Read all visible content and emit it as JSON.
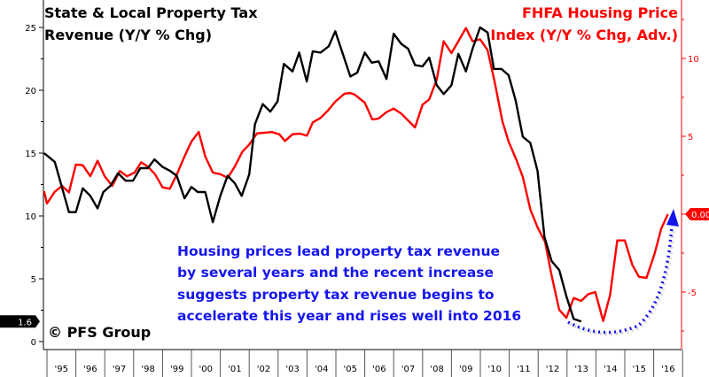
{
  "chart_data": {
    "type": "line",
    "title": "",
    "left_axis": {
      "label_lines": [
        "State & Local Property Tax",
        "Revenue (Y/Y % Chg)"
      ],
      "ylim": [
        0,
        27
      ],
      "ticks": [
        0,
        5,
        10,
        15,
        20,
        25
      ],
      "color": "#000000"
    },
    "right_axis": {
      "label_lines": [
        "FHFA Housing Price",
        "Index (Y/Y % Chg, Adv.)"
      ],
      "ylim": [
        -8.2,
        13.8
      ],
      "ticks": [
        -5,
        5,
        10
      ],
      "color": "#ff0000"
    },
    "x_axis": {
      "xlim": [
        1994.85,
        2017
      ],
      "tick_labels": [
        "'95",
        "'96",
        "'97",
        "'98",
        "'99",
        "'00",
        "'01",
        "'02",
        "'03",
        "'04",
        "'05",
        "'06",
        "'07",
        "'08",
        "'09",
        "'10",
        "'11",
        "'12",
        "'13",
        "'14",
        "'15",
        "'16"
      ]
    },
    "series": [
      {
        "name": "State & Local Property Tax Revenue (Y/Y % Chg)",
        "axis": "left",
        "color": "#000000",
        "last_value_label": "1.6",
        "points": [
          [
            1994.9,
            15.0
          ],
          [
            1995.27,
            14.3
          ],
          [
            1995.76,
            10.3
          ],
          [
            1996.0,
            10.3
          ],
          [
            1996.24,
            12.2
          ],
          [
            1996.5,
            11.6
          ],
          [
            1996.75,
            10.6
          ],
          [
            1996.95,
            11.9
          ],
          [
            1997.2,
            12.4
          ],
          [
            1997.46,
            13.4
          ],
          [
            1997.72,
            12.8
          ],
          [
            1997.98,
            12.8
          ],
          [
            1998.23,
            13.8
          ],
          [
            1998.49,
            13.8
          ],
          [
            1998.72,
            14.5
          ],
          [
            1999.0,
            13.9
          ],
          [
            1999.25,
            13.6
          ],
          [
            1999.49,
            13.2
          ],
          [
            1999.76,
            11.4
          ],
          [
            2000.0,
            12.3
          ],
          [
            2000.22,
            11.9
          ],
          [
            2000.48,
            11.9
          ],
          [
            2000.74,
            9.5
          ],
          [
            2001.0,
            11.6
          ],
          [
            2001.25,
            13.2
          ],
          [
            2001.5,
            12.6
          ],
          [
            2001.74,
            11.6
          ],
          [
            2002.0,
            13.3
          ],
          [
            2002.2,
            17.3
          ],
          [
            2002.47,
            18.9
          ],
          [
            2002.73,
            18.3
          ],
          [
            2002.98,
            19.1
          ],
          [
            2003.2,
            22.1
          ],
          [
            2003.5,
            21.5
          ],
          [
            2003.73,
            23.0
          ],
          [
            2003.99,
            20.7
          ],
          [
            2004.2,
            23.1
          ],
          [
            2004.47,
            23.0
          ],
          [
            2004.75,
            23.5
          ],
          [
            2004.98,
            24.7
          ],
          [
            2005.5,
            21.1
          ],
          [
            2005.74,
            21.4
          ],
          [
            2006.0,
            23.0
          ],
          [
            2006.24,
            22.2
          ],
          [
            2006.48,
            22.3
          ],
          [
            2006.75,
            20.9
          ],
          [
            2007.0,
            24.5
          ],
          [
            2007.26,
            23.7
          ],
          [
            2007.5,
            23.3
          ],
          [
            2007.74,
            22.0
          ],
          [
            2008.0,
            21.9
          ],
          [
            2008.23,
            22.6
          ],
          [
            2008.49,
            20.4
          ],
          [
            2008.73,
            19.7
          ],
          [
            2009.0,
            20.4
          ],
          [
            2009.24,
            22.9
          ],
          [
            2009.5,
            21.5
          ],
          [
            2009.73,
            23.3
          ],
          [
            2009.99,
            25.0
          ],
          [
            2010.25,
            24.6
          ],
          [
            2010.47,
            21.7
          ],
          [
            2010.73,
            21.7
          ],
          [
            2010.98,
            21.2
          ],
          [
            2011.22,
            19.2
          ],
          [
            2011.47,
            16.3
          ],
          [
            2011.73,
            15.8
          ],
          [
            2011.98,
            13.6
          ],
          [
            2012.22,
            8.3
          ],
          [
            2012.47,
            6.4
          ],
          [
            2012.73,
            5.7
          ],
          [
            2012.98,
            3.6
          ],
          [
            2013.23,
            1.8
          ],
          [
            2013.49,
            1.6
          ]
        ]
      },
      {
        "name": "FHFA Housing Price Index (Y/Y % Chg, Adv.)",
        "axis": "right",
        "color": "#ff0000",
        "last_value_label": "0.00",
        "points": [
          [
            1994.9,
            1.48
          ],
          [
            1995.0,
            0.68
          ],
          [
            1995.27,
            1.44
          ],
          [
            1995.52,
            1.82
          ],
          [
            1995.76,
            1.4
          ],
          [
            1996.0,
            3.18
          ],
          [
            1996.24,
            3.14
          ],
          [
            1996.5,
            2.44
          ],
          [
            1996.75,
            3.43
          ],
          [
            1997.0,
            2.42
          ],
          [
            1997.26,
            1.82
          ],
          [
            1997.52,
            2.77
          ],
          [
            1997.77,
            2.43
          ],
          [
            1998.03,
            2.67
          ],
          [
            1998.26,
            3.33
          ],
          [
            1998.49,
            3.05
          ],
          [
            1998.74,
            2.57
          ],
          [
            1999.0,
            1.72
          ],
          [
            1999.25,
            1.63
          ],
          [
            1999.5,
            2.57
          ],
          [
            1999.76,
            3.71
          ],
          [
            2000.0,
            4.66
          ],
          [
            2000.25,
            5.28
          ],
          [
            2000.48,
            3.71
          ],
          [
            2000.74,
            2.67
          ],
          [
            2001.0,
            2.57
          ],
          [
            2001.25,
            2.33
          ],
          [
            2001.5,
            3.05
          ],
          [
            2001.76,
            4.0
          ],
          [
            2002.0,
            4.47
          ],
          [
            2002.27,
            5.19
          ],
          [
            2002.53,
            5.23
          ],
          [
            2002.78,
            5.27
          ],
          [
            2003.04,
            5.13
          ],
          [
            2003.24,
            4.7
          ],
          [
            2003.5,
            5.13
          ],
          [
            2003.75,
            5.17
          ],
          [
            2004.0,
            5.04
          ],
          [
            2004.2,
            5.89
          ],
          [
            2004.47,
            6.18
          ],
          [
            2004.72,
            6.65
          ],
          [
            2004.98,
            7.22
          ],
          [
            2005.29,
            7.73
          ],
          [
            2005.49,
            7.78
          ],
          [
            2005.64,
            7.69
          ],
          [
            2006.0,
            7.16
          ],
          [
            2006.26,
            6.08
          ],
          [
            2006.48,
            6.14
          ],
          [
            2006.75,
            6.55
          ],
          [
            2007.0,
            6.78
          ],
          [
            2007.26,
            6.46
          ],
          [
            2007.74,
            5.57
          ],
          [
            2008.0,
            7.03
          ],
          [
            2008.23,
            7.37
          ],
          [
            2008.49,
            8.64
          ],
          [
            2008.73,
            11.1
          ],
          [
            2009.0,
            10.34
          ],
          [
            2009.24,
            11.1
          ],
          [
            2009.5,
            11.95
          ],
          [
            2009.73,
            11.1
          ],
          [
            2009.99,
            11.23
          ],
          [
            2010.25,
            10.53
          ],
          [
            2010.5,
            8.45
          ],
          [
            2010.76,
            5.98
          ],
          [
            2010.98,
            4.66
          ],
          [
            2011.24,
            3.52
          ],
          [
            2011.47,
            2.39
          ],
          [
            2011.73,
            0.3
          ],
          [
            2011.98,
            -0.84
          ],
          [
            2012.24,
            -1.78
          ],
          [
            2012.47,
            -3.96
          ],
          [
            2012.73,
            -6.14
          ],
          [
            2012.98,
            -6.66
          ],
          [
            2013.23,
            -5.38
          ],
          [
            2013.49,
            -5.57
          ],
          [
            2013.74,
            -5.13
          ],
          [
            2013.98,
            -5.0
          ],
          [
            2014.25,
            -6.86
          ],
          [
            2014.49,
            -5.19
          ],
          [
            2014.74,
            -1.69
          ],
          [
            2015.0,
            -1.69
          ],
          [
            2015.26,
            -3.26
          ],
          [
            2015.49,
            -4.02
          ],
          [
            2015.75,
            -4.09
          ],
          [
            2016.03,
            -2.54
          ],
          [
            2016.26,
            -0.93
          ],
          [
            2016.49,
            0.0
          ]
        ]
      }
    ],
    "annotation": {
      "lines": [
        "Housing prices lead property tax revenue",
        "by several years and the recent increase",
        "suggests property tax revenue begins to",
        "accelerate this year and rises well into 2016"
      ],
      "color": "#1515ee",
      "arrow": "blue dotted curved arrow pointing up-right"
    },
    "copyright": "© PFS Group",
    "grid": false
  }
}
